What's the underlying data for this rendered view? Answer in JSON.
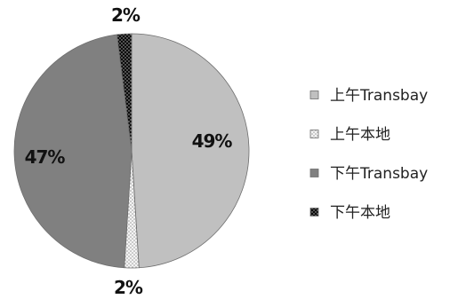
{
  "chart_data": {
    "type": "pie",
    "slices": [
      {
        "label": "上午Transbay",
        "value": 49,
        "data_label": "49%",
        "color": "#c0c0c0",
        "pattern": "solid"
      },
      {
        "label": "上午本地",
        "value": 2,
        "data_label": "2%",
        "color": "#e4e4e4",
        "pattern": "dotted-light"
      },
      {
        "label": "下午Transbay",
        "value": 47,
        "data_label": "47%",
        "color": "#808080",
        "pattern": "solid"
      },
      {
        "label": "下午本地",
        "value": 2,
        "data_label": "2%",
        "color": "#111111",
        "pattern": "dotted-dark"
      }
    ],
    "start_angle_deg": 0,
    "direction": "clockwise",
    "legend_position": "right"
  }
}
